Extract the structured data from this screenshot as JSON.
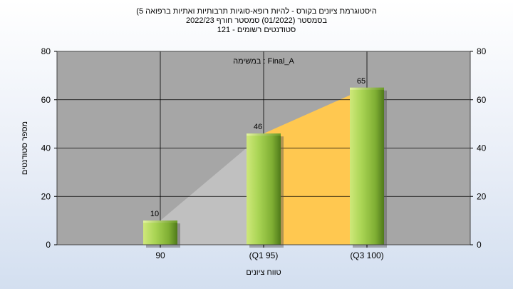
{
  "chart_data": {
    "type": "bar",
    "title_lines": [
      "(היסטוגרמת ציונים בקורס - להיות רופא-סוגיות תרבותיות ואתיות ברפואה 5",
      "בסמסטר  (01/2022)  סמסטר חורף 2022/23",
      "סטודנטים רשומים - 121"
    ],
    "inner_label": "במשימה : Final_A",
    "xlabel": "טווח ציונים",
    "ylabel": "מספר סטודנטים",
    "categories": [
      "90",
      "(Q1 95)",
      "(Q3 100)"
    ],
    "values": [
      10,
      46,
      65
    ],
    "ylim": [
      0,
      80
    ],
    "yticks": [
      0,
      20,
      40,
      60,
      80
    ],
    "grid": true,
    "area_colors": [
      "#c0c0c0",
      "#ffc850"
    ],
    "bar_color": "#8cc63f",
    "plot_bg": "#a6a6a6"
  }
}
